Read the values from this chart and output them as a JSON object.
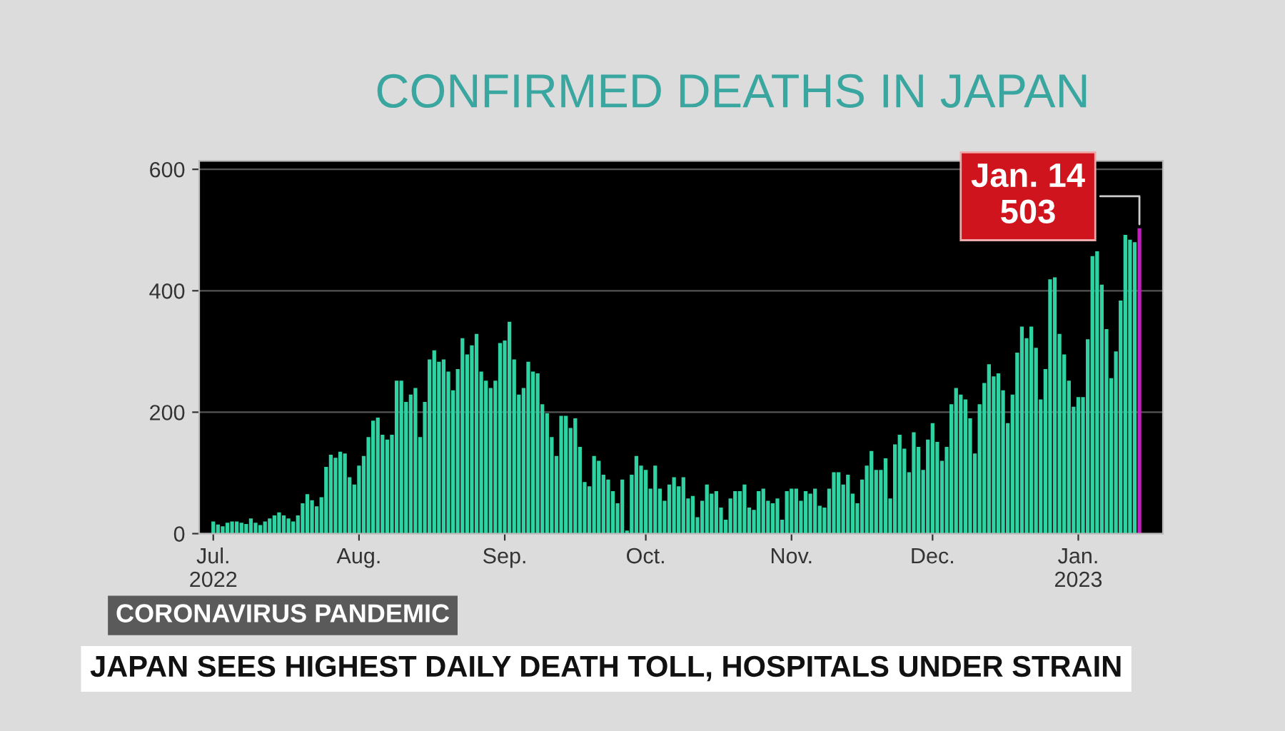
{
  "chart_data": {
    "type": "bar",
    "title": "CONFIRMED DEATHS IN JAPAN",
    "x": [
      "2022-07-01",
      "2022-07-02",
      "2022-07-03",
      "2022-07-04",
      "2022-07-05",
      "2022-07-06",
      "2022-07-07",
      "2022-07-08",
      "2022-07-09",
      "2022-07-10",
      "2022-07-11",
      "2022-07-12",
      "2022-07-13",
      "2022-07-14",
      "2022-07-15",
      "2022-07-16",
      "2022-07-17",
      "2022-07-18",
      "2022-07-19",
      "2022-07-20",
      "2022-07-21",
      "2022-07-22",
      "2022-07-23",
      "2022-07-24",
      "2022-07-25",
      "2022-07-26",
      "2022-07-27",
      "2022-07-28",
      "2022-07-29",
      "2022-07-30",
      "2022-07-31",
      "2022-08-01",
      "2022-08-02",
      "2022-08-03",
      "2022-08-04",
      "2022-08-05",
      "2022-08-06",
      "2022-08-07",
      "2022-08-08",
      "2022-08-09",
      "2022-08-10",
      "2022-08-11",
      "2022-08-12",
      "2022-08-13",
      "2022-08-14",
      "2022-08-15",
      "2022-08-16",
      "2022-08-17",
      "2022-08-18",
      "2022-08-19",
      "2022-08-20",
      "2022-08-21",
      "2022-08-22",
      "2022-08-23",
      "2022-08-24",
      "2022-08-25",
      "2022-08-26",
      "2022-08-27",
      "2022-08-28",
      "2022-08-29",
      "2022-08-30",
      "2022-08-31",
      "2022-09-01",
      "2022-09-02",
      "2022-09-03",
      "2022-09-04",
      "2022-09-05",
      "2022-09-06",
      "2022-09-07",
      "2022-09-08",
      "2022-09-09",
      "2022-09-10",
      "2022-09-11",
      "2022-09-12",
      "2022-09-13",
      "2022-09-14",
      "2022-09-15",
      "2022-09-16",
      "2022-09-17",
      "2022-09-18",
      "2022-09-19",
      "2022-09-20",
      "2022-09-21",
      "2022-09-22",
      "2022-09-23",
      "2022-09-24",
      "2022-09-25",
      "2022-09-26",
      "2022-09-27",
      "2022-09-28",
      "2022-09-29",
      "2022-09-30",
      "2022-10-01",
      "2022-10-02",
      "2022-10-03",
      "2022-10-04",
      "2022-10-05",
      "2022-10-06",
      "2022-10-07",
      "2022-10-08",
      "2022-10-09",
      "2022-10-10",
      "2022-10-11",
      "2022-10-12",
      "2022-10-13",
      "2022-10-14",
      "2022-10-15",
      "2022-10-16",
      "2022-10-17",
      "2022-10-18",
      "2022-10-19",
      "2022-10-20",
      "2022-10-21",
      "2022-10-22",
      "2022-10-23",
      "2022-10-24",
      "2022-10-25",
      "2022-10-26",
      "2022-10-27",
      "2022-10-28",
      "2022-10-29",
      "2022-10-30",
      "2022-10-31",
      "2022-11-01",
      "2022-11-02",
      "2022-11-03",
      "2022-11-04",
      "2022-11-05",
      "2022-11-06",
      "2022-11-07",
      "2022-11-08",
      "2022-11-09",
      "2022-11-10",
      "2022-11-11",
      "2022-11-12",
      "2022-11-13",
      "2022-11-14",
      "2022-11-15",
      "2022-11-16",
      "2022-11-17",
      "2022-11-18",
      "2022-11-19",
      "2022-11-20",
      "2022-11-21",
      "2022-11-22",
      "2022-11-23",
      "2022-11-24",
      "2022-11-25",
      "2022-11-26",
      "2022-11-27",
      "2022-11-28",
      "2022-11-29",
      "2022-11-30",
      "2022-12-01",
      "2022-12-02",
      "2022-12-03",
      "2022-12-04",
      "2022-12-05",
      "2022-12-06",
      "2022-12-07",
      "2022-12-08",
      "2022-12-09",
      "2022-12-10",
      "2022-12-11",
      "2022-12-12",
      "2022-12-13",
      "2022-12-14",
      "2022-12-15",
      "2022-12-16",
      "2022-12-17",
      "2022-12-18",
      "2022-12-19",
      "2022-12-20",
      "2022-12-21",
      "2022-12-22",
      "2022-12-23",
      "2022-12-24",
      "2022-12-25",
      "2022-12-26",
      "2022-12-27",
      "2022-12-28",
      "2022-12-29",
      "2022-12-30",
      "2022-12-31",
      "2023-01-01",
      "2023-01-02",
      "2023-01-03",
      "2023-01-04",
      "2023-01-05",
      "2023-01-06",
      "2023-01-07",
      "2023-01-08",
      "2023-01-09",
      "2023-01-10",
      "2023-01-11",
      "2023-01-12",
      "2023-01-13",
      "2023-01-14"
    ],
    "values": [
      20,
      15,
      12,
      18,
      20,
      20,
      18,
      16,
      25,
      18,
      14,
      20,
      25,
      30,
      35,
      30,
      25,
      20,
      30,
      50,
      65,
      55,
      45,
      60,
      110,
      130,
      125,
      135,
      132,
      93,
      81,
      112,
      128,
      159,
      186,
      191,
      163,
      155,
      163,
      252,
      252,
      217,
      229,
      240,
      159,
      217,
      287,
      302,
      283,
      287,
      267,
      236,
      271,
      322,
      295,
      310,
      329,
      267,
      252,
      240,
      252,
      314,
      318,
      349,
      287,
      229,
      240,
      283,
      267,
      264,
      213,
      198,
      159,
      128,
      194,
      194,
      174,
      190,
      143,
      85,
      78,
      128,
      120,
      97,
      89,
      70,
      50,
      89,
      5,
      97,
      128,
      112,
      105,
      74,
      112,
      74,
      54,
      81,
      93,
      78,
      93,
      58,
      62,
      27,
      54,
      81,
      66,
      70,
      43,
      23,
      58,
      70,
      70,
      81,
      43,
      39,
      70,
      74,
      54,
      50,
      58,
      23,
      70,
      74,
      74,
      54,
      70,
      66,
      74,
      46,
      43,
      74,
      101,
      101,
      81,
      97,
      66,
      50,
      89,
      112,
      136,
      105,
      105,
      124,
      58,
      147,
      163,
      140,
      101,
      167,
      143,
      105,
      155,
      182,
      151,
      120,
      143,
      213,
      240,
      229,
      221,
      190,
      132,
      213,
      248,
      279,
      259,
      264,
      236,
      182,
      229,
      298,
      341,
      322,
      341,
      306,
      221,
      271,
      419,
      422,
      329,
      295,
      252,
      209,
      225,
      225,
      320,
      457,
      465,
      410,
      337,
      256,
      300,
      384,
      492,
      484,
      480,
      503
    ],
    "colors": [
      "#2fd3a3",
      "#2fd3a3",
      "#2fd3a3",
      "#2fd3a3",
      "#2fd3a3",
      "#2fd3a3",
      "#2fd3a3",
      "#2fd3a3",
      "#2fd3a3",
      "#2fd3a3",
      "#2fd3a3",
      "#2fd3a3",
      "#2fd3a3",
      "#2fd3a3",
      "#2fd3a3",
      "#2fd3a3",
      "#2fd3a3",
      "#2fd3a3",
      "#2fd3a3",
      "#2fd3a3",
      "#2fd3a3",
      "#2fd3a3",
      "#2fd3a3",
      "#2fd3a3",
      "#2fd3a3",
      "#2fd3a3",
      "#2fd3a3",
      "#2fd3a3",
      "#2fd3a3",
      "#2fd3a3",
      "#2fd3a3",
      "#2fd3a3",
      "#2fd3a3",
      "#2fd3a3",
      "#2fd3a3",
      "#2fd3a3",
      "#2fd3a3",
      "#2fd3a3",
      "#2fd3a3",
      "#2fd3a3",
      "#2fd3a3",
      "#2fd3a3",
      "#2fd3a3",
      "#2fd3a3",
      "#2fd3a3",
      "#2fd3a3",
      "#2fd3a3",
      "#2fd3a3",
      "#2fd3a3",
      "#2fd3a3",
      "#2fd3a3",
      "#2fd3a3",
      "#2fd3a3",
      "#2fd3a3",
      "#2fd3a3",
      "#2fd3a3",
      "#2fd3a3",
      "#2fd3a3",
      "#2fd3a3",
      "#2fd3a3",
      "#2fd3a3",
      "#2fd3a3",
      "#2fd3a3",
      "#2fd3a3",
      "#2fd3a3",
      "#2fd3a3",
      "#2fd3a3",
      "#2fd3a3",
      "#2fd3a3",
      "#2fd3a3",
      "#2fd3a3",
      "#2fd3a3",
      "#2fd3a3",
      "#2fd3a3",
      "#2fd3a3",
      "#2fd3a3",
      "#2fd3a3",
      "#2fd3a3",
      "#2fd3a3",
      "#2fd3a3",
      "#2fd3a3",
      "#2fd3a3",
      "#2fd3a3",
      "#2fd3a3",
      "#2fd3a3",
      "#2fd3a3",
      "#2fd3a3",
      "#2fd3a3",
      "#2fd3a3",
      "#2fd3a3",
      "#2fd3a3",
      "#2fd3a3",
      "#2fd3a3",
      "#2fd3a3",
      "#2fd3a3",
      "#2fd3a3",
      "#2fd3a3",
      "#2fd3a3",
      "#2fd3a3",
      "#2fd3a3",
      "#2fd3a3",
      "#2fd3a3",
      "#2fd3a3",
      "#2fd3a3",
      "#2fd3a3",
      "#2fd3a3",
      "#2fd3a3",
      "#2fd3a3",
      "#2fd3a3",
      "#2fd3a3",
      "#2fd3a3",
      "#2fd3a3",
      "#2fd3a3",
      "#2fd3a3",
      "#2fd3a3",
      "#2fd3a3",
      "#2fd3a3",
      "#2fd3a3",
      "#2fd3a3",
      "#2fd3a3",
      "#2fd3a3",
      "#2fd3a3",
      "#2fd3a3",
      "#2fd3a3",
      "#2fd3a3",
      "#2fd3a3",
      "#2fd3a3",
      "#2fd3a3",
      "#2fd3a3",
      "#2fd3a3",
      "#2fd3a3",
      "#2fd3a3",
      "#2fd3a3",
      "#2fd3a3",
      "#2fd3a3",
      "#2fd3a3",
      "#2fd3a3",
      "#2fd3a3",
      "#2fd3a3",
      "#2fd3a3",
      "#2fd3a3",
      "#2fd3a3",
      "#2fd3a3",
      "#2fd3a3",
      "#2fd3a3",
      "#2fd3a3",
      "#2fd3a3",
      "#2fd3a3",
      "#2fd3a3",
      "#2fd3a3",
      "#2fd3a3",
      "#2fd3a3",
      "#2fd3a3",
      "#2fd3a3",
      "#2fd3a3",
      "#2fd3a3",
      "#2fd3a3",
      "#2fd3a3",
      "#2fd3a3",
      "#2fd3a3",
      "#2fd3a3",
      "#2fd3a3",
      "#2fd3a3",
      "#2fd3a3",
      "#2fd3a3",
      "#2fd3a3",
      "#2fd3a3",
      "#2fd3a3",
      "#2fd3a3",
      "#2fd3a3",
      "#2fd3a3",
      "#2fd3a3",
      "#2fd3a3",
      "#2fd3a3",
      "#2fd3a3",
      "#2fd3a3",
      "#2fd3a3",
      "#2fd3a3",
      "#2fd3a3",
      "#2fd3a3",
      "#2fd3a3",
      "#2fd3a3",
      "#2fd3a3",
      "#2fd3a3",
      "#2fd3a3",
      "#2fd3a3",
      "#2fd3a3",
      "#2fd3a3",
      "#2fd3a3",
      "#2fd3a3",
      "#2fd3a3",
      "#2fd3a3",
      "#2fd3a3",
      "#2fd3a3",
      "#2fd3a3",
      "#2fd3a3",
      "#2fd3a3",
      "#c21fc0"
    ],
    "ylim": [
      0,
      614
    ],
    "yticks": [
      0,
      200,
      400,
      600
    ],
    "xlim": [
      "2022-06-28",
      "2023-01-19"
    ],
    "xticks": [
      {
        "value": "2022-07-01",
        "label": "Jul.\n2022"
      },
      {
        "value": "2022-08-01",
        "label": "Aug."
      },
      {
        "value": "2022-09-01",
        "label": "Sep."
      },
      {
        "value": "2022-10-01",
        "label": "Oct."
      },
      {
        "value": "2022-11-01",
        "label": "Nov."
      },
      {
        "value": "2022-12-01",
        "label": "Dec."
      },
      {
        "value": "2023-01-01",
        "label": "Jan.\n2023"
      }
    ],
    "grid": "y",
    "annotations": [
      {
        "text": "Jan. 14\n503",
        "x": "2023-01-14",
        "y": 503
      },
      "CORONAVIRUS PANDEMIC",
      "JAPAN SEES HIGHEST DAILY DEATH TOLL, HOSPITALS UNDER STRAIN"
    ]
  }
}
